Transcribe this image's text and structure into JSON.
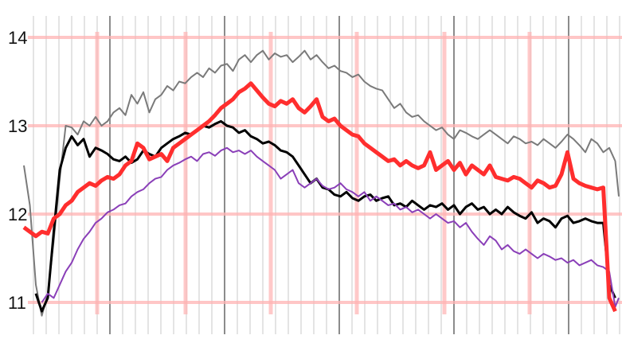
{
  "chart_data": {
    "type": "line",
    "title": "",
    "xlabel": "",
    "ylabel": "",
    "ylim": [
      10.85,
      14.15
    ],
    "yticks": [
      11,
      12,
      13,
      14
    ],
    "x_range": [
      0,
      100
    ],
    "grid": "on",
    "legend": "none",
    "colors": {
      "background": "#ffffff",
      "minor_grid": "#d9d9d9",
      "dark_grid": "#8c8c8c",
      "major_grid": "#ffb3b3",
      "red": "#ff2e2e",
      "black": "#000000",
      "gray": "#7a7a7a",
      "purple": "#8a3fb8"
    },
    "series": [
      {
        "key": "gray",
        "x": [
          0,
          1,
          2,
          3,
          4,
          5,
          6,
          7,
          8,
          9,
          10,
          11,
          12,
          13,
          14,
          15,
          16,
          17,
          18,
          19,
          20,
          21,
          22,
          23,
          24,
          25,
          26,
          27,
          28,
          29,
          30,
          31,
          32,
          33,
          34,
          35,
          36,
          37,
          38,
          39,
          40,
          41,
          42,
          43,
          44,
          45,
          46,
          47,
          48,
          49,
          50,
          51,
          52,
          53,
          54,
          55,
          56,
          57,
          58,
          59,
          60,
          61,
          62,
          63,
          64,
          65,
          66,
          67,
          68,
          69,
          70,
          71,
          72,
          73,
          74,
          75,
          76,
          77,
          78,
          79,
          80,
          81,
          82,
          83,
          84,
          85,
          86,
          87,
          88,
          89,
          90,
          91,
          92,
          93,
          94,
          95,
          96,
          97,
          98,
          99,
          100
        ],
        "values": [
          12.55,
          12.1,
          11.2,
          10.85,
          11.1,
          11.7,
          12.4,
          13.0,
          12.98,
          12.9,
          13.05,
          13.0,
          13.1,
          13.0,
          13.05,
          13.15,
          13.2,
          13.12,
          13.35,
          13.25,
          13.38,
          13.15,
          13.3,
          13.35,
          13.45,
          13.4,
          13.5,
          13.48,
          13.55,
          13.6,
          13.55,
          13.65,
          13.6,
          13.68,
          13.7,
          13.62,
          13.75,
          13.8,
          13.72,
          13.8,
          13.85,
          13.75,
          13.82,
          13.78,
          13.8,
          13.72,
          13.78,
          13.85,
          13.75,
          13.8,
          13.72,
          13.65,
          13.68,
          13.62,
          13.6,
          13.55,
          13.58,
          13.5,
          13.45,
          13.42,
          13.4,
          13.3,
          13.2,
          13.25,
          13.15,
          13.1,
          13.12,
          13.05,
          13.0,
          12.95,
          12.98,
          12.9,
          12.85,
          12.95,
          12.92,
          12.88,
          12.85,
          12.9,
          12.95,
          12.9,
          12.85,
          12.8,
          12.88,
          12.85,
          12.8,
          12.82,
          12.78,
          12.85,
          12.8,
          12.75,
          12.82,
          12.9,
          12.85,
          12.78,
          12.7,
          12.85,
          12.8,
          12.7,
          12.75,
          12.6,
          12.2
        ]
      },
      {
        "key": "black",
        "x": [
          2,
          3,
          4,
          5,
          6,
          7,
          8,
          9,
          10,
          11,
          12,
          13,
          14,
          15,
          16,
          17,
          18,
          19,
          20,
          21,
          22,
          23,
          24,
          25,
          26,
          27,
          28,
          29,
          30,
          31,
          32,
          33,
          34,
          35,
          36,
          37,
          38,
          39,
          40,
          41,
          42,
          43,
          44,
          45,
          46,
          47,
          48,
          49,
          50,
          51,
          52,
          53,
          54,
          55,
          56,
          57,
          58,
          59,
          60,
          61,
          62,
          63,
          64,
          65,
          66,
          67,
          68,
          69,
          70,
          71,
          72,
          73,
          74,
          75,
          76,
          77,
          78,
          79,
          80,
          81,
          82,
          83,
          84,
          85,
          86,
          87,
          88,
          89,
          90,
          91,
          92,
          93,
          94,
          95,
          96,
          97,
          98,
          99
        ],
        "values": [
          11.1,
          10.9,
          11.05,
          11.8,
          12.5,
          12.75,
          12.88,
          12.78,
          12.85,
          12.65,
          12.75,
          12.72,
          12.68,
          12.62,
          12.6,
          12.65,
          12.58,
          12.62,
          12.72,
          12.68,
          12.65,
          12.75,
          12.8,
          12.85,
          12.88,
          12.92,
          12.9,
          12.95,
          13.0,
          12.98,
          13.02,
          13.05,
          13.0,
          12.98,
          12.92,
          12.95,
          12.88,
          12.85,
          12.8,
          12.82,
          12.78,
          12.72,
          12.7,
          12.65,
          12.55,
          12.45,
          12.35,
          12.4,
          12.3,
          12.28,
          12.22,
          12.2,
          12.25,
          12.18,
          12.15,
          12.2,
          12.22,
          12.15,
          12.18,
          12.2,
          12.1,
          12.12,
          12.08,
          12.15,
          12.1,
          12.05,
          12.1,
          12.08,
          12.12,
          12.05,
          12.1,
          12.0,
          12.08,
          12.12,
          12.05,
          12.08,
          12.0,
          12.05,
          12.0,
          12.08,
          12.02,
          11.98,
          11.95,
          12.02,
          11.9,
          11.95,
          11.92,
          11.85,
          11.95,
          11.98,
          11.9,
          11.92,
          11.95,
          11.92,
          11.9,
          11.9,
          11.2,
          11.05
        ]
      },
      {
        "key": "purple",
        "x": [
          3,
          4,
          5,
          6,
          7,
          8,
          9,
          10,
          11,
          12,
          13,
          14,
          15,
          16,
          17,
          18,
          19,
          20,
          21,
          22,
          23,
          24,
          25,
          26,
          27,
          28,
          29,
          30,
          31,
          32,
          33,
          34,
          35,
          36,
          37,
          38,
          39,
          40,
          41,
          42,
          43,
          44,
          45,
          46,
          47,
          48,
          49,
          50,
          51,
          52,
          53,
          54,
          55,
          56,
          57,
          58,
          59,
          60,
          61,
          62,
          63,
          64,
          65,
          66,
          67,
          68,
          69,
          70,
          71,
          72,
          73,
          74,
          75,
          76,
          77,
          78,
          79,
          80,
          81,
          82,
          83,
          84,
          85,
          86,
          87,
          88,
          89,
          90,
          91,
          92,
          93,
          94,
          95,
          96,
          97,
          98,
          99,
          100
        ],
        "values": [
          11.0,
          11.1,
          11.05,
          11.2,
          11.35,
          11.45,
          11.6,
          11.72,
          11.8,
          11.9,
          11.95,
          12.02,
          12.05,
          12.1,
          12.12,
          12.2,
          12.25,
          12.28,
          12.35,
          12.4,
          12.42,
          12.5,
          12.55,
          12.58,
          12.62,
          12.65,
          12.6,
          12.68,
          12.7,
          12.66,
          12.72,
          12.75,
          12.7,
          12.72,
          12.68,
          12.72,
          12.65,
          12.6,
          12.55,
          12.5,
          12.4,
          12.45,
          12.5,
          12.35,
          12.3,
          12.35,
          12.4,
          12.32,
          12.28,
          12.3,
          12.35,
          12.28,
          12.25,
          12.2,
          12.25,
          12.15,
          12.2,
          12.15,
          12.1,
          12.12,
          12.05,
          12.08,
          12.02,
          12.05,
          12.0,
          11.95,
          12.0,
          11.95,
          11.9,
          11.92,
          11.85,
          11.9,
          11.8,
          11.72,
          11.65,
          11.75,
          11.7,
          11.6,
          11.65,
          11.58,
          11.55,
          11.6,
          11.55,
          11.5,
          11.55,
          11.52,
          11.48,
          11.5,
          11.45,
          11.48,
          11.42,
          11.45,
          11.48,
          11.42,
          11.4,
          11.35,
          10.95,
          11.05
        ]
      },
      {
        "key": "red",
        "x": [
          0,
          1,
          2,
          3,
          4,
          5,
          6,
          7,
          8,
          9,
          10,
          11,
          12,
          13,
          14,
          15,
          16,
          17,
          18,
          19,
          20,
          21,
          22,
          23,
          24,
          25,
          26,
          27,
          28,
          29,
          30,
          31,
          32,
          33,
          34,
          35,
          36,
          37,
          38,
          39,
          40,
          41,
          42,
          43,
          44,
          45,
          46,
          47,
          48,
          49,
          50,
          51,
          52,
          53,
          54,
          55,
          56,
          57,
          58,
          59,
          60,
          61,
          62,
          63,
          64,
          65,
          66,
          67,
          68,
          69,
          70,
          71,
          72,
          73,
          74,
          75,
          76,
          77,
          78,
          79,
          80,
          81,
          82,
          83,
          84,
          85,
          86,
          87,
          88,
          89,
          90,
          91,
          92,
          93,
          94,
          95,
          96,
          97,
          98,
          99
        ],
        "values": [
          11.85,
          11.8,
          11.75,
          11.8,
          11.78,
          11.95,
          12.0,
          12.1,
          12.15,
          12.25,
          12.3,
          12.35,
          12.32,
          12.38,
          12.42,
          12.4,
          12.45,
          12.55,
          12.6,
          12.8,
          12.75,
          12.62,
          12.65,
          12.68,
          12.6,
          12.75,
          12.8,
          12.85,
          12.9,
          12.95,
          13.0,
          13.05,
          13.12,
          13.2,
          13.25,
          13.3,
          13.38,
          13.42,
          13.48,
          13.4,
          13.32,
          13.25,
          13.22,
          13.28,
          13.25,
          13.3,
          13.2,
          13.15,
          13.22,
          13.3,
          13.1,
          13.05,
          13.08,
          13.0,
          12.95,
          12.9,
          12.88,
          12.8,
          12.75,
          12.7,
          12.65,
          12.6,
          12.62,
          12.55,
          12.6,
          12.55,
          12.52,
          12.55,
          12.7,
          12.5,
          12.55,
          12.6,
          12.5,
          12.58,
          12.45,
          12.55,
          12.5,
          12.45,
          12.55,
          12.42,
          12.4,
          12.38,
          12.42,
          12.4,
          12.35,
          12.3,
          12.38,
          12.35,
          12.3,
          12.32,
          12.45,
          12.7,
          12.4,
          12.35,
          12.32,
          12.3,
          12.28,
          12.3,
          11.05,
          10.9
        ]
      }
    ]
  }
}
